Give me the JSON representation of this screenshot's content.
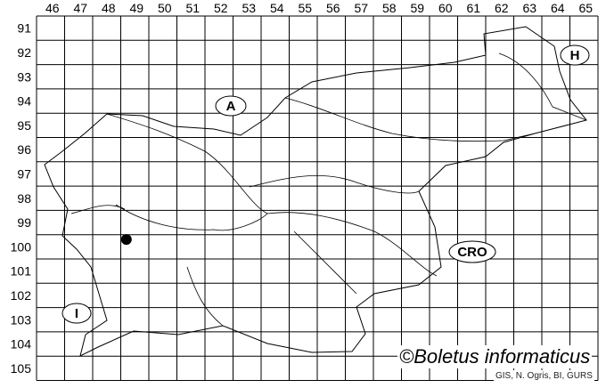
{
  "map": {
    "columns": [
      "46",
      "47",
      "48",
      "49",
      "50",
      "51",
      "52",
      "53",
      "54",
      "55",
      "56",
      "57",
      "58",
      "59",
      "60",
      "61",
      "62",
      "63",
      "64",
      "65"
    ],
    "rows": [
      "91",
      "92",
      "93",
      "94",
      "95",
      "96",
      "97",
      "98",
      "99",
      "100",
      "101",
      "102",
      "103",
      "104",
      "105"
    ],
    "country_labels": [
      {
        "id": "austria",
        "text": "A"
      },
      {
        "id": "hungary",
        "text": "H"
      },
      {
        "id": "italy",
        "text": "I"
      },
      {
        "id": "croatia",
        "text": "CRO"
      }
    ],
    "occurrence": {
      "column": "49",
      "row": "100"
    },
    "colors": {
      "lines": "#000000",
      "background": "#ffffff",
      "marker": "#000000"
    }
  },
  "credit": "©Boletus informaticus",
  "source": "GIS, N. Ogris, BI, GURS"
}
